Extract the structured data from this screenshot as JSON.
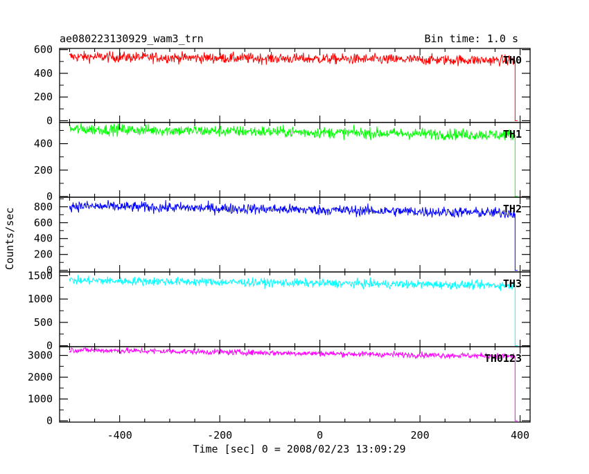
{
  "chart_data": {
    "type": "line",
    "title": "ae080223130929_wam3_trn",
    "subtitle": "Bin time: 1.0 s",
    "xlabel": "Time [sec] 0 = 2008/02/23 13:09:29",
    "ylabel": "Counts/sec",
    "xlim": [
      -520,
      420
    ],
    "x_ticks": [
      -400,
      -200,
      0,
      200,
      400
    ],
    "x_start": -500,
    "x_end": 395,
    "grid": false,
    "panels": [
      {
        "name": "TH0",
        "color": "#ff0000",
        "ylim": [
          -15,
          610
        ],
        "y_ticks": [
          0,
          200,
          400,
          600
        ],
        "mean_start": 540,
        "mean_end": 508,
        "noise": 22,
        "drop_at": 390,
        "drop_to": 0
      },
      {
        "name": "TH1",
        "color": "#00ff00",
        "ylim": [
          -5,
          560
        ],
        "y_ticks": [
          0,
          200,
          400
        ],
        "mean_start": 510,
        "mean_end": 465,
        "noise": 21,
        "drop_at": 390,
        "drop_to": 0
      },
      {
        "name": "TH2",
        "color": "#0000ff",
        "ylim": [
          -20,
          920
        ],
        "y_ticks": [
          0,
          200,
          400,
          600,
          800
        ],
        "mean_start": 810,
        "mean_end": 720,
        "noise": 33,
        "drop_at": 390,
        "drop_to": 0
      },
      {
        "name": "TH3",
        "color": "#00ffff",
        "ylim": [
          -20,
          1580
        ],
        "y_ticks": [
          0,
          500,
          1000,
          1500
        ],
        "mean_start": 1400,
        "mean_end": 1290,
        "noise": 45,
        "drop_at": 390,
        "drop_to": 0
      },
      {
        "name": "TH0123",
        "color": "#ff00ff",
        "ylim": [
          -60,
          3400
        ],
        "y_ticks": [
          0,
          1000,
          2000,
          3000
        ],
        "mean_start": 3250,
        "mean_end": 2960,
        "noise": 65,
        "drop_at": 390,
        "drop_to": 0
      }
    ]
  }
}
